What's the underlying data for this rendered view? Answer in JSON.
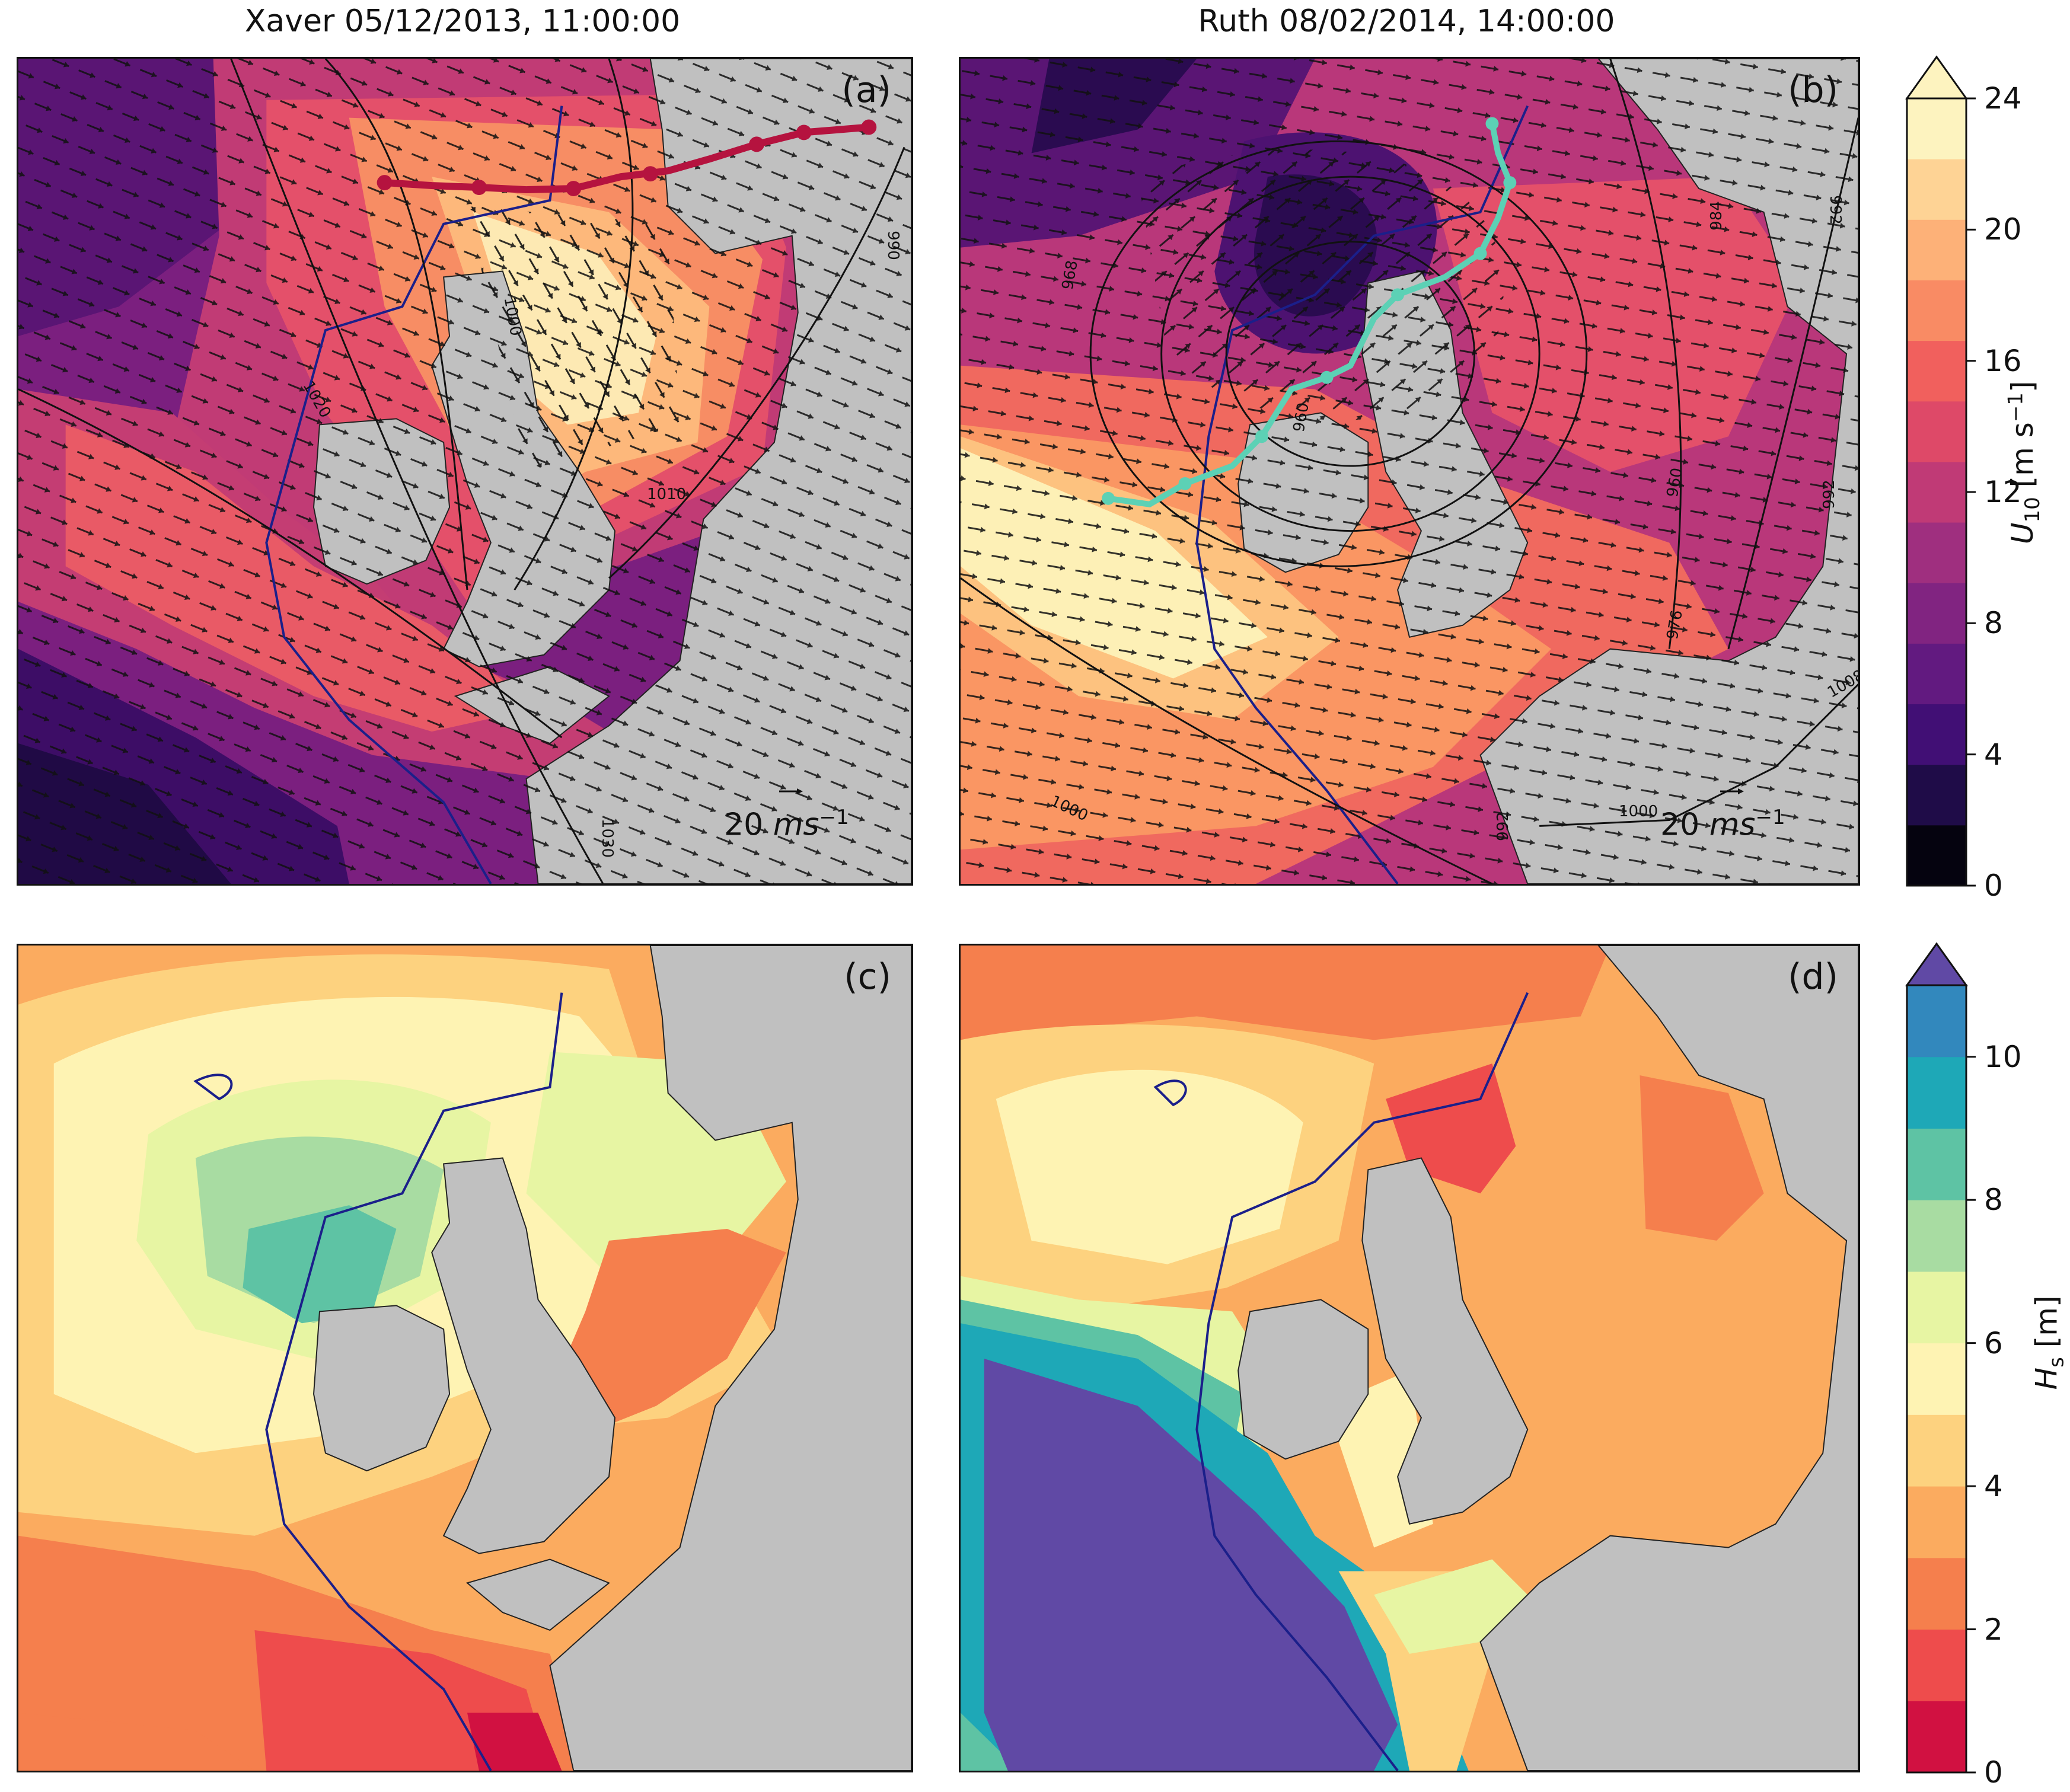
{
  "titles": {
    "left": "Xaver 05/12/2013, 11:00:00",
    "right": "Ruth 08/02/2014, 14:00:00"
  },
  "panels": {
    "a": {
      "label": "(a)",
      "isobars": [
        "1020",
        "1000",
        "990",
        "1010",
        "1030"
      ],
      "scale": "20"
    },
    "b": {
      "label": "(b)",
      "isobars": [
        "968",
        "984",
        "992",
        "992",
        "960",
        "976",
        "1008",
        "1000",
        "992",
        "1000",
        "960"
      ],
      "scale": "20"
    },
    "c": {
      "label": "(c)"
    },
    "d": {
      "label": "(d)"
    }
  },
  "scale_units": {
    "unit_main": "ms",
    "unit_exp": "−1"
  },
  "colorbars": {
    "wind": {
      "symbol": "U",
      "subscript": "10",
      "unit": "[m s",
      "unit_exp": "−1",
      "unit_close": "]",
      "ticks": [
        "0",
        "4",
        "8",
        "12",
        "16",
        "20",
        "24"
      ],
      "colors": [
        "#05030f",
        "#1f0c48",
        "#410f75",
        "#621a80",
        "#812481",
        "#9f2f7f",
        "#c03a76",
        "#de4968",
        "#f1605d",
        "#f98b64",
        "#fdb178",
        "#fed395",
        "#fdf3bf"
      ],
      "extend": "max"
    },
    "wave": {
      "symbol": "H",
      "subscript": "s",
      "unit": "[m]",
      "ticks": [
        "0",
        "2",
        "4",
        "6",
        "8",
        "10"
      ],
      "colors": [
        "#d11141",
        "#ee4c4c",
        "#f57f4d",
        "#fbab5f",
        "#fdd27f",
        "#fef3b3",
        "#e7f5a3",
        "#a8dca2",
        "#5ec3a4",
        "#1ea8b7",
        "#3288bd"
      ],
      "extend_color": "#6049a5"
    }
  }
}
